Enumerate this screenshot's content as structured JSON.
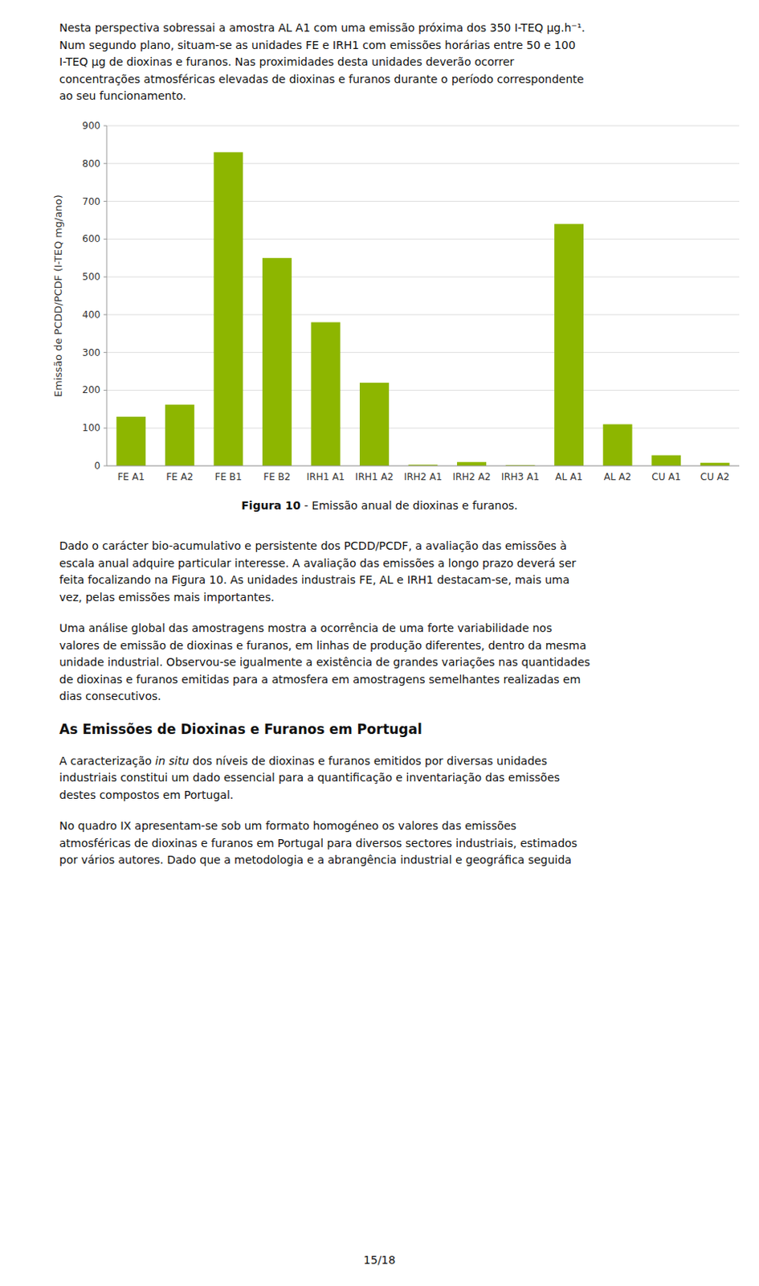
{
  "chart_data": {
    "type": "bar",
    "categories": [
      "FE A1",
      "FE A2",
      "FE B1",
      "FE B2",
      "IRH1 A1",
      "IRH1 A2",
      "IRH2 A1",
      "IRH2 A2",
      "IRH3 A1",
      "AL A1",
      "AL A2",
      "CU A1",
      "CU A2"
    ],
    "values": [
      130,
      162,
      830,
      550,
      380,
      220,
      3,
      10,
      2,
      640,
      110,
      28,
      8
    ],
    "color": "#8DB600",
    "ylabel": "Emissão de PCDD/PCDF (I-TEQ mg/ano)",
    "ylim": [
      0,
      900
    ],
    "yticks": [
      0,
      100,
      200,
      300,
      400,
      500,
      600,
      700,
      800,
      900
    ],
    "grid": true
  },
  "text_before": [
    "Nesta perspectiva sobressai a amostra AL A1 com uma emissão próxima dos 350 I-TEQ μg.h⁻¹.",
    "Num segundo plano, situam-se as unidades FE e IRH1 com emissões horárias entre 50 e 100",
    "I-TEQ μg de dioxinas e furanos. Nas proximidades desta unidades deverão ocorrer",
    "concentrações atmosféricas elevadas de dioxinas e furanos durante o período correspondente",
    "ao seu funcionamento."
  ],
  "caption": {
    "label": "Figura 10",
    "text": " - Emissão anual de dioxinas e furanos."
  },
  "paragraphs_after": [
    [
      "Dado o carácter bio-acumulativo e persistente dos PCDD/PCDF, a avaliação das emissões à",
      "escala anual adquire particular interesse. A avaliação das emissões a longo prazo deverá ser",
      "feita focalizando na Figura 10. As unidades industrais FE, AL e IRH1 destacam-se, mais uma",
      "vez, pelas emissões mais importantes."
    ],
    [
      "Uma análise global das amostragens mostra a ocorrência de uma forte variabilidade nos",
      "valores de emissão de dioxinas e furanos, em linhas de produção diferentes, dentro da mesma",
      "unidade industrial. Observou-se igualmente a existência de grandes variações nas quantidades",
      "de dioxinas e furanos emitidas para a atmosfera em amostragens semelhantes realizadas em",
      "dias consecutivos."
    ]
  ],
  "heading": "As Emissões de Dioxinas e Furanos em Portugal",
  "paragraphs_final": [
    [
      [
        {
          "text": "A caracterização "
        },
        {
          "text": "in situ",
          "italic": true
        },
        {
          "text": " dos níveis de dioxinas e furanos emitidos por diversas unidades"
        }
      ],
      "industriais constitui um dado essencial para a quantificação e inventariação das emissões",
      "destes compostos em Portugal."
    ],
    [
      "No quadro IX apresentam-se sob um formato homogéneo os valores das emissões",
      "atmosféricas de dioxinas e furanos em Portugal para diversos sectores industriais, estimados",
      "por vários autores. Dado que a metodologia e a abrangência industrial e geográfica seguida"
    ]
  ],
  "page_number": "15/18"
}
